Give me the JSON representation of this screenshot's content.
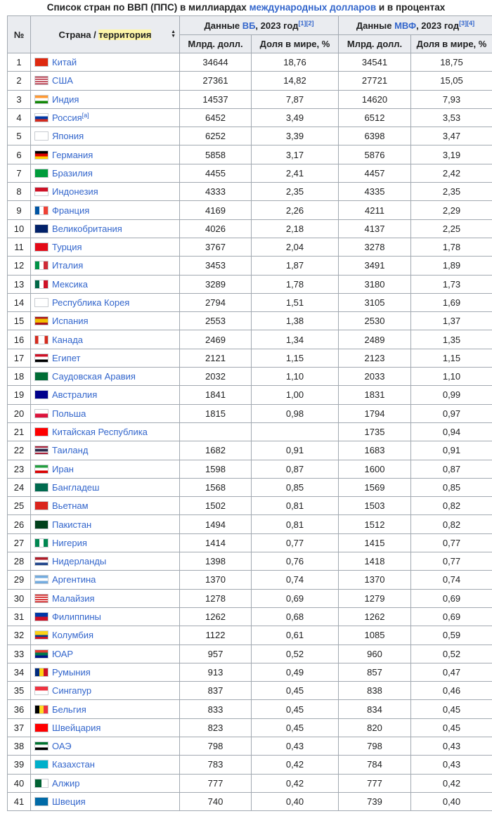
{
  "caption": {
    "prefix": "Список стран по ВВП (ППС) в миллиардах ",
    "link": "международных долларов",
    "suffix": " и в процентах"
  },
  "headers": {
    "rank": "№",
    "country_pre": "Страна / ",
    "country_hl": "территория",
    "wb_pre": "Данные ",
    "wb_link": "ВБ",
    "wb_post": ", 2023 год",
    "wb_refs": "[1][2]",
    "imf_pre": "Данные ",
    "imf_link": "МВФ",
    "imf_post": ", 2023 год",
    "imf_refs": "[3][4]",
    "sub_value": "Млрд. долл.",
    "sub_share": "Доля в мире, %"
  },
  "rows": [
    {
      "rank": "1",
      "country": "Китай",
      "ref": "",
      "wb": "34644",
      "wbs": "18,76",
      "imf": "34541",
      "imfs": "18,75"
    },
    {
      "rank": "2",
      "country": "США",
      "ref": "",
      "wb": "27361",
      "wbs": "14,82",
      "imf": "27721",
      "imfs": "15,05"
    },
    {
      "rank": "3",
      "country": "Индия",
      "ref": "",
      "wb": "14537",
      "wbs": "7,87",
      "imf": "14620",
      "imfs": "7,93"
    },
    {
      "rank": "4",
      "country": "Россия",
      "ref": "[a]",
      "wb": "6452",
      "wbs": "3,49",
      "imf": "6512",
      "imfs": "3,53"
    },
    {
      "rank": "5",
      "country": "Япония",
      "ref": "",
      "wb": "6252",
      "wbs": "3,39",
      "imf": "6398",
      "imfs": "3,47"
    },
    {
      "rank": "6",
      "country": "Германия",
      "ref": "",
      "wb": "5858",
      "wbs": "3,17",
      "imf": "5876",
      "imfs": "3,19"
    },
    {
      "rank": "7",
      "country": "Бразилия",
      "ref": "",
      "wb": "4455",
      "wbs": "2,41",
      "imf": "4457",
      "imfs": "2,42"
    },
    {
      "rank": "8",
      "country": "Индонезия",
      "ref": "",
      "wb": "4333",
      "wbs": "2,35",
      "imf": "4335",
      "imfs": "2,35"
    },
    {
      "rank": "9",
      "country": "Франция",
      "ref": "",
      "wb": "4169",
      "wbs": "2,26",
      "imf": "4211",
      "imfs": "2,29"
    },
    {
      "rank": "10",
      "country": "Великобритания",
      "ref": "",
      "wb": "4026",
      "wbs": "2,18",
      "imf": "4137",
      "imfs": "2,25"
    },
    {
      "rank": "11",
      "country": "Турция",
      "ref": "",
      "wb": "3767",
      "wbs": "2,04",
      "imf": "3278",
      "imfs": "1,78"
    },
    {
      "rank": "12",
      "country": "Италия",
      "ref": "",
      "wb": "3453",
      "wbs": "1,87",
      "imf": "3491",
      "imfs": "1,89"
    },
    {
      "rank": "13",
      "country": "Мексика",
      "ref": "",
      "wb": "3289",
      "wbs": "1,78",
      "imf": "3180",
      "imfs": "1,73"
    },
    {
      "rank": "14",
      "country": "Республика Корея",
      "ref": "",
      "wb": "2794",
      "wbs": "1,51",
      "imf": "3105",
      "imfs": "1,69"
    },
    {
      "rank": "15",
      "country": "Испания",
      "ref": "",
      "wb": "2553",
      "wbs": "1,38",
      "imf": "2530",
      "imfs": "1,37"
    },
    {
      "rank": "16",
      "country": "Канада",
      "ref": "",
      "wb": "2469",
      "wbs": "1,34",
      "imf": "2489",
      "imfs": "1,35"
    },
    {
      "rank": "17",
      "country": "Египет",
      "ref": "",
      "wb": "2121",
      "wbs": "1,15",
      "imf": "2123",
      "imfs": "1,15"
    },
    {
      "rank": "18",
      "country": "Саудовская Аравия",
      "ref": "",
      "wb": "2032",
      "wbs": "1,10",
      "imf": "2033",
      "imfs": "1,10"
    },
    {
      "rank": "19",
      "country": "Австралия",
      "ref": "",
      "wb": "1841",
      "wbs": "1,00",
      "imf": "1831",
      "imfs": "0,99"
    },
    {
      "rank": "20",
      "country": "Польша",
      "ref": "",
      "wb": "1815",
      "wbs": "0,98",
      "imf": "1794",
      "imfs": "0,97"
    },
    {
      "rank": "21",
      "country": "Китайская Республика",
      "ref": "",
      "wb": "",
      "wbs": "",
      "imf": "1735",
      "imfs": "0,94"
    },
    {
      "rank": "22",
      "country": "Таиланд",
      "ref": "",
      "wb": "1682",
      "wbs": "0,91",
      "imf": "1683",
      "imfs": "0,91"
    },
    {
      "rank": "23",
      "country": "Иран",
      "ref": "",
      "wb": "1598",
      "wbs": "0,87",
      "imf": "1600",
      "imfs": "0,87"
    },
    {
      "rank": "24",
      "country": "Бангладеш",
      "ref": "",
      "wb": "1568",
      "wbs": "0,85",
      "imf": "1569",
      "imfs": "0,85"
    },
    {
      "rank": "25",
      "country": "Вьетнам",
      "ref": "",
      "wb": "1502",
      "wbs": "0,81",
      "imf": "1503",
      "imfs": "0,82"
    },
    {
      "rank": "26",
      "country": "Пакистан",
      "ref": "",
      "wb": "1494",
      "wbs": "0,81",
      "imf": "1512",
      "imfs": "0,82"
    },
    {
      "rank": "27",
      "country": "Нигерия",
      "ref": "",
      "wb": "1414",
      "wbs": "0,77",
      "imf": "1415",
      "imfs": "0,77"
    },
    {
      "rank": "28",
      "country": "Нидерланды",
      "ref": "",
      "wb": "1398",
      "wbs": "0,76",
      "imf": "1418",
      "imfs": "0,77"
    },
    {
      "rank": "29",
      "country": "Аргентина",
      "ref": "",
      "wb": "1370",
      "wbs": "0,74",
      "imf": "1370",
      "imfs": "0,74"
    },
    {
      "rank": "30",
      "country": "Малайзия",
      "ref": "",
      "wb": "1278",
      "wbs": "0,69",
      "imf": "1279",
      "imfs": "0,69"
    },
    {
      "rank": "31",
      "country": "Филиппины",
      "ref": "",
      "wb": "1262",
      "wbs": "0,68",
      "imf": "1262",
      "imfs": "0,69"
    },
    {
      "rank": "32",
      "country": "Колумбия",
      "ref": "",
      "wb": "1122",
      "wbs": "0,61",
      "imf": "1085",
      "imfs": "0,59"
    },
    {
      "rank": "33",
      "country": "ЮАР",
      "ref": "",
      "wb": "957",
      "wbs": "0,52",
      "imf": "960",
      "imfs": "0,52"
    },
    {
      "rank": "34",
      "country": "Румыния",
      "ref": "",
      "wb": "913",
      "wbs": "0,49",
      "imf": "857",
      "imfs": "0,47"
    },
    {
      "rank": "35",
      "country": "Сингапур",
      "ref": "",
      "wb": "837",
      "wbs": "0,45",
      "imf": "838",
      "imfs": "0,46"
    },
    {
      "rank": "36",
      "country": "Бельгия",
      "ref": "",
      "wb": "833",
      "wbs": "0,45",
      "imf": "834",
      "imfs": "0,45"
    },
    {
      "rank": "37",
      "country": "Швейцария",
      "ref": "",
      "wb": "823",
      "wbs": "0,45",
      "imf": "820",
      "imfs": "0,45"
    },
    {
      "rank": "38",
      "country": "ОАЭ",
      "ref": "",
      "wb": "798",
      "wbs": "0,43",
      "imf": "798",
      "imfs": "0,43"
    },
    {
      "rank": "39",
      "country": "Казахстан",
      "ref": "",
      "wb": "783",
      "wbs": "0,42",
      "imf": "784",
      "imfs": "0,43"
    },
    {
      "rank": "40",
      "country": "Алжир",
      "ref": "",
      "wb": "777",
      "wbs": "0,42",
      "imf": "777",
      "imfs": "0,42"
    },
    {
      "rank": "41",
      "country": "Швеция",
      "ref": "",
      "wb": "740",
      "wbs": "0,40",
      "imf": "739",
      "imfs": "0,40"
    }
  ],
  "flags": {
    "Китай": {
      "icon": "china-flag-icon",
      "bg": "#de2910",
      "stripes": [],
      "dir": "h"
    },
    "США": {
      "icon": "usa-flag-icon",
      "bg": "#b22234",
      "stripes": [
        "#b22234",
        "#ffffff",
        "#b22234",
        "#ffffff",
        "#b22234",
        "#ffffff",
        "#b22234"
      ],
      "dir": "h"
    },
    "Индия": {
      "icon": "india-flag-icon",
      "bg": "#ffffff",
      "stripes": [
        "#ff9933",
        "#ffffff",
        "#138808"
      ],
      "dir": "h"
    },
    "Россия": {
      "icon": "russia-flag-icon",
      "bg": "#ffffff",
      "stripes": [
        "#ffffff",
        "#0039a6",
        "#d52b1e"
      ],
      "dir": "h"
    },
    "Япония": {
      "icon": "japan-flag-icon",
      "bg": "#ffffff",
      "stripes": [],
      "dir": "h"
    },
    "Германия": {
      "icon": "germany-flag-icon",
      "bg": "#000000",
      "stripes": [
        "#000000",
        "#dd0000",
        "#ffce00"
      ],
      "dir": "h"
    },
    "Бразилия": {
      "icon": "brazil-flag-icon",
      "bg": "#009c3b",
      "stripes": [],
      "dir": "h"
    },
    "Индонезия": {
      "icon": "indonesia-flag-icon",
      "bg": "#ffffff",
      "stripes": [
        "#ce1126",
        "#ffffff"
      ],
      "dir": "h"
    },
    "Франция": {
      "icon": "france-flag-icon",
      "bg": "#ffffff",
      "stripes": [
        "#0055a4",
        "#ffffff",
        "#ef4135"
      ],
      "dir": "v"
    },
    "Великобритания": {
      "icon": "uk-flag-icon",
      "bg": "#012169",
      "stripes": [],
      "dir": "h"
    },
    "Турция": {
      "icon": "turkey-flag-icon",
      "bg": "#e30a17",
      "stripes": [],
      "dir": "h"
    },
    "Италия": {
      "icon": "italy-flag-icon",
      "bg": "#ffffff",
      "stripes": [
        "#009246",
        "#ffffff",
        "#ce2b37"
      ],
      "dir": "v"
    },
    "Мексика": {
      "icon": "mexico-flag-icon",
      "bg": "#ffffff",
      "stripes": [
        "#006847",
        "#ffffff",
        "#ce1126"
      ],
      "dir": "v"
    },
    "Республика Корея": {
      "icon": "korea-flag-icon",
      "bg": "#ffffff",
      "stripes": [],
      "dir": "h"
    },
    "Испания": {
      "icon": "spain-flag-icon",
      "bg": "#aa151b",
      "stripes": [
        "#aa151b",
        "#f1bf00",
        "#f1bf00",
        "#aa151b"
      ],
      "dir": "h"
    },
    "Канада": {
      "icon": "canada-flag-icon",
      "bg": "#ffffff",
      "stripes": [
        "#d52b1e",
        "#ffffff",
        "#ffffff",
        "#d52b1e"
      ],
      "dir": "v"
    },
    "Египет": {
      "icon": "egypt-flag-icon",
      "bg": "#ffffff",
      "stripes": [
        "#ce1126",
        "#ffffff",
        "#000000"
      ],
      "dir": "h"
    },
    "Саудовская Аравия": {
      "icon": "saudi-arabia-flag-icon",
      "bg": "#006c35",
      "stripes": [],
      "dir": "h"
    },
    "Австралия": {
      "icon": "australia-flag-icon",
      "bg": "#00008b",
      "stripes": [],
      "dir": "h"
    },
    "Польша": {
      "icon": "poland-flag-icon",
      "bg": "#ffffff",
      "stripes": [
        "#ffffff",
        "#dc143c"
      ],
      "dir": "h"
    },
    "Китайская Республика": {
      "icon": "taiwan-flag-icon",
      "bg": "#fe0000",
      "stripes": [],
      "dir": "h"
    },
    "Таиланд": {
      "icon": "thailand-flag-icon",
      "bg": "#ffffff",
      "stripes": [
        "#a51931",
        "#f4f5f8",
        "#2d2a4a",
        "#2d2a4a",
        "#f4f5f8",
        "#a51931"
      ],
      "dir": "h"
    },
    "Иран": {
      "icon": "iran-flag-icon",
      "bg": "#ffffff",
      "stripes": [
        "#239f40",
        "#ffffff",
        "#da0000"
      ],
      "dir": "h"
    },
    "Бангладеш": {
      "icon": "bangladesh-flag-icon",
      "bg": "#006a4e",
      "stripes": [],
      "dir": "h"
    },
    "Вьетнам": {
      "icon": "vietnam-flag-icon",
      "bg": "#da251d",
      "stripes": [],
      "dir": "h"
    },
    "Пакистан": {
      "icon": "pakistan-flag-icon",
      "bg": "#01411c",
      "stripes": [],
      "dir": "h"
    },
    "Нигерия": {
      "icon": "nigeria-flag-icon",
      "bg": "#ffffff",
      "stripes": [
        "#008751",
        "#ffffff",
        "#008751"
      ],
      "dir": "v"
    },
    "Нидерланды": {
      "icon": "netherlands-flag-icon",
      "bg": "#ffffff",
      "stripes": [
        "#ae1c28",
        "#ffffff",
        "#21468b"
      ],
      "dir": "h"
    },
    "Аргентина": {
      "icon": "argentina-flag-icon",
      "bg": "#ffffff",
      "stripes": [
        "#74acdf",
        "#ffffff",
        "#74acdf"
      ],
      "dir": "h"
    },
    "Малайзия": {
      "icon": "malaysia-flag-icon",
      "bg": "#ffffff",
      "stripes": [
        "#cc0001",
        "#ffffff",
        "#cc0001",
        "#ffffff",
        "#cc0001",
        "#ffffff",
        "#cc0001"
      ],
      "dir": "h"
    },
    "Филиппины": {
      "icon": "philippines-flag-icon",
      "bg": "#ffffff",
      "stripes": [
        "#0038a8",
        "#ce1126"
      ],
      "dir": "h"
    },
    "Колумбия": {
      "icon": "colombia-flag-icon",
      "bg": "#fcd116",
      "stripes": [
        "#fcd116",
        "#fcd116",
        "#003893",
        "#ce1126"
      ],
      "dir": "h"
    },
    "ЮАР": {
      "icon": "south-africa-flag-icon",
      "bg": "#007a4d",
      "stripes": [
        "#e03c31",
        "#007a4d",
        "#001489"
      ],
      "dir": "h"
    },
    "Румыния": {
      "icon": "romania-flag-icon",
      "bg": "#ffffff",
      "stripes": [
        "#002b7f",
        "#fcd116",
        "#ce1126"
      ],
      "dir": "v"
    },
    "Сингапур": {
      "icon": "singapore-flag-icon",
      "bg": "#ffffff",
      "stripes": [
        "#ef3340",
        "#ffffff"
      ],
      "dir": "h"
    },
    "Бельгия": {
      "icon": "belgium-flag-icon",
      "bg": "#ffffff",
      "stripes": [
        "#000000",
        "#fdda24",
        "#ef3340"
      ],
      "dir": "v"
    },
    "Швейцария": {
      "icon": "switzerland-flag-icon",
      "bg": "#ff0000",
      "stripes": [],
      "dir": "h"
    },
    "ОАЭ": {
      "icon": "uae-flag-icon",
      "bg": "#ffffff",
      "stripes": [
        "#00732f",
        "#ffffff",
        "#000000"
      ],
      "dir": "h"
    },
    "Казахстан": {
      "icon": "kazakhstan-flag-icon",
      "bg": "#00afca",
      "stripes": [],
      "dir": "h"
    },
    "Алжир": {
      "icon": "algeria-flag-icon",
      "bg": "#ffffff",
      "stripes": [
        "#006233",
        "#ffffff"
      ],
      "dir": "v"
    },
    "Швеция": {
      "icon": "sweden-flag-icon",
      "bg": "#006aa7",
      "stripes": [],
      "dir": "h"
    }
  }
}
